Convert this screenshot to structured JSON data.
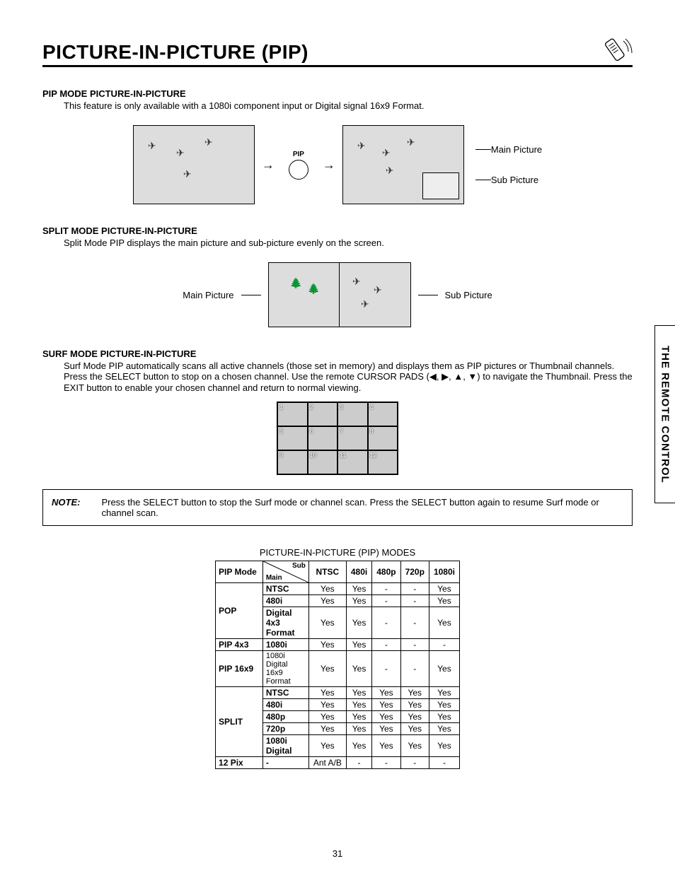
{
  "title": "PICTURE-IN-PICTURE (PIP)",
  "side_tab": "THE REMOTE CONTROL",
  "page_number": "31",
  "sections": {
    "pip_mode": {
      "heading": "PIP MODE PICTURE-IN-PICTURE",
      "body": "This feature is only available with a 1080i component input or Digital signal 16x9 Format."
    },
    "split_mode": {
      "heading": "SPLIT MODE PICTURE-IN-PICTURE",
      "body": "Split Mode PIP displays the main picture and sub-picture evenly on the screen."
    },
    "surf_mode": {
      "heading": "SURF MODE PICTURE-IN-PICTURE",
      "body": "Surf Mode PIP automatically scans all active channels (those set in memory) and displays them as PIP pictures or Thumbnail channels.  Press the SELECT button to stop on a chosen channel.  Use the remote CURSOR PADS (◀, ▶, ▲, ▼) to navigate the Thumbnail.  Press the EXIT button to enable your chosen channel and return to normal viewing."
    }
  },
  "fig_labels": {
    "main_picture": "Main Picture",
    "sub_picture": "Sub Picture",
    "pip_button": "PIP"
  },
  "note": {
    "label": "NOTE:",
    "text": "Press the SELECT button to stop the Surf mode or channel scan.  Press the SELECT button again to resume Surf mode or channel scan."
  },
  "thumb_numbers": [
    "1",
    "2",
    "3",
    "4",
    "5",
    "6",
    "7",
    "8",
    "9",
    "10",
    "11",
    "12"
  ],
  "table": {
    "title": "PICTURE-IN-PICTURE (PIP) MODES",
    "diag": {
      "sub": "Sub",
      "main": "Main"
    },
    "col_headers": [
      "PIP Mode",
      "NTSC",
      "480i",
      "480p",
      "720p",
      "1080i"
    ],
    "groups": [
      {
        "mode": "POP",
        "rows": [
          {
            "main": "NTSC",
            "cells": [
              "Yes",
              "Yes",
              "-",
              "-",
              "Yes"
            ]
          },
          {
            "main": "480i",
            "cells": [
              "Yes",
              "Yes",
              "-",
              "-",
              "Yes"
            ]
          },
          {
            "main": "Digital 4x3 Format",
            "cells": [
              "Yes",
              "Yes",
              "-",
              "-",
              "Yes"
            ],
            "two_line": true
          }
        ]
      },
      {
        "mode": "PIP 4x3",
        "rows": [
          {
            "main": "1080i",
            "cells": [
              "Yes",
              "Yes",
              "-",
              "-",
              "-"
            ]
          }
        ]
      },
      {
        "mode": "PIP 16x9",
        "rows": [
          {
            "main": "1080i Digital 16x9 Format",
            "cells": [
              "Yes",
              "Yes",
              "-",
              "-",
              "Yes"
            ],
            "two_line": true,
            "small": true
          }
        ]
      },
      {
        "mode": "SPLIT",
        "rows": [
          {
            "main": "NTSC",
            "cells": [
              "Yes",
              "Yes",
              "Yes",
              "Yes",
              "Yes"
            ]
          },
          {
            "main": "480i",
            "cells": [
              "Yes",
              "Yes",
              "Yes",
              "Yes",
              "Yes"
            ]
          },
          {
            "main": "480p",
            "cells": [
              "Yes",
              "Yes",
              "Yes",
              "Yes",
              "Yes"
            ]
          },
          {
            "main": "720p",
            "cells": [
              "Yes",
              "Yes",
              "Yes",
              "Yes",
              "Yes"
            ]
          },
          {
            "main": "1080i Digital",
            "cells": [
              "Yes",
              "Yes",
              "Yes",
              "Yes",
              "Yes"
            ],
            "two_line": true
          }
        ]
      },
      {
        "mode": "12 Pix",
        "rows": [
          {
            "main": "-",
            "cells": [
              "Ant A/B",
              "-",
              "-",
              "-",
              "-"
            ]
          }
        ]
      }
    ]
  }
}
